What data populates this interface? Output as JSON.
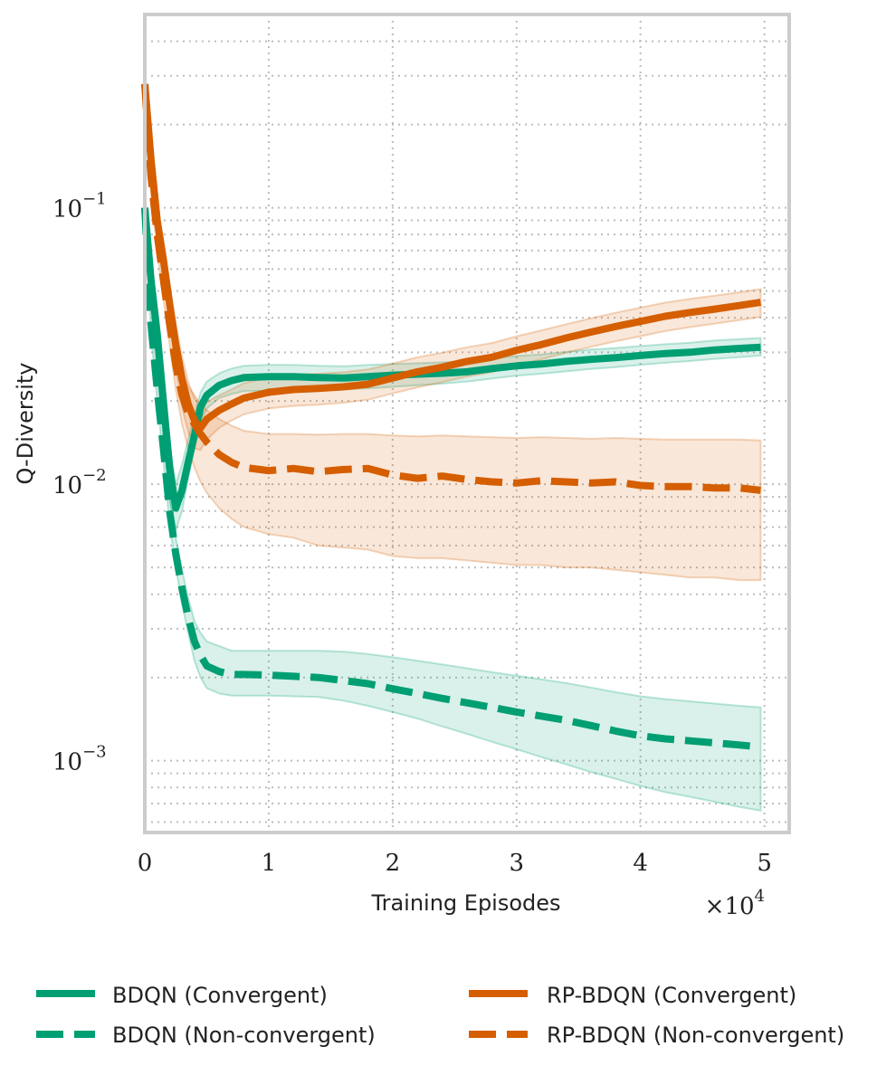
{
  "chart_data": {
    "type": "line",
    "xlabel": "Training Episodes",
    "ylabel": "Q-Diversity",
    "x_multiplier": {
      "base": "×10",
      "exp": "4"
    },
    "xlim": [
      0,
      52000
    ],
    "ylim": [
      0.00055,
      0.5
    ],
    "yscale": "log",
    "grid": true,
    "legend_position": "bottom",
    "xticks": [
      {
        "value": 0,
        "label": "0"
      },
      {
        "value": 10000,
        "label": "1"
      },
      {
        "value": 20000,
        "label": "2"
      },
      {
        "value": 30000,
        "label": "3"
      },
      {
        "value": 40000,
        "label": "4"
      },
      {
        "value": 50000,
        "label": "5"
      }
    ],
    "yticks": [
      {
        "value": 0.1,
        "base": "10",
        "exp": "−1"
      },
      {
        "value": 0.01,
        "base": "10",
        "exp": "−2"
      },
      {
        "value": 0.001,
        "base": "10",
        "exp": "−3"
      }
    ],
    "series": [
      {
        "name": "BDQN (Convergent)",
        "color": "#009e73",
        "dash": "solid",
        "x": [
          0,
          500,
          1000,
          1500,
          2000,
          2500,
          3000,
          3500,
          4000,
          4500,
          5000,
          6000,
          7000,
          8000,
          10000,
          12000,
          14000,
          16000,
          18000,
          20000,
          22000,
          24000,
          26000,
          28000,
          30000,
          32000,
          34000,
          36000,
          38000,
          40000,
          42000,
          44000,
          46000,
          48000,
          49700
        ],
        "y": [
          0.1,
          0.055,
          0.035,
          0.02,
          0.0115,
          0.0082,
          0.0095,
          0.012,
          0.015,
          0.019,
          0.021,
          0.0228,
          0.0237,
          0.0243,
          0.0245,
          0.0245,
          0.0243,
          0.0242,
          0.0245,
          0.0248,
          0.025,
          0.0252,
          0.0255,
          0.0262,
          0.0268,
          0.0272,
          0.0278,
          0.0283,
          0.0287,
          0.0292,
          0.0297,
          0.03,
          0.0306,
          0.031,
          0.0313
        ],
        "band_low": [
          0.095,
          0.05,
          0.03,
          0.016,
          0.0088,
          0.0068,
          0.008,
          0.0105,
          0.0135,
          0.017,
          0.0188,
          0.0205,
          0.0212,
          0.0217,
          0.0218,
          0.0219,
          0.0219,
          0.022,
          0.0222,
          0.0225,
          0.0228,
          0.0231,
          0.0235,
          0.0241,
          0.0247,
          0.0251,
          0.0256,
          0.0261,
          0.0265,
          0.027,
          0.0275,
          0.0279,
          0.0284,
          0.0288,
          0.0292
        ],
        "band_high": [
          0.105,
          0.06,
          0.04,
          0.024,
          0.014,
          0.01,
          0.0118,
          0.0145,
          0.0178,
          0.0215,
          0.0235,
          0.0252,
          0.0262,
          0.0268,
          0.027,
          0.027,
          0.0268,
          0.0267,
          0.027,
          0.0272,
          0.0274,
          0.0276,
          0.0279,
          0.0285,
          0.0291,
          0.0295,
          0.0301,
          0.0307,
          0.0311,
          0.0316,
          0.0321,
          0.0325,
          0.0331,
          0.0335,
          0.0338
        ]
      },
      {
        "name": "BDQN (Non-convergent)",
        "color": "#009e73",
        "dash": "dashed",
        "x": [
          0,
          500,
          1000,
          1500,
          2000,
          2500,
          3000,
          3500,
          4000,
          4500,
          5000,
          6000,
          7000,
          8000,
          10000,
          12000,
          14000,
          16000,
          18000,
          20000,
          22000,
          24000,
          26000,
          28000,
          30000,
          32000,
          34000,
          36000,
          38000,
          40000,
          42000,
          44000,
          46000,
          48000,
          49700
        ],
        "y": [
          0.1,
          0.038,
          0.022,
          0.0135,
          0.008,
          0.0056,
          0.0042,
          0.0033,
          0.0027,
          0.0024,
          0.0022,
          0.0021,
          0.00205,
          0.00205,
          0.00204,
          0.00202,
          0.002,
          0.00195,
          0.0019,
          0.00182,
          0.00175,
          0.00168,
          0.00162,
          0.00156,
          0.0015,
          0.00145,
          0.0014,
          0.00134,
          0.00128,
          0.00123,
          0.0012,
          0.00118,
          0.00116,
          0.00114,
          0.00112
        ],
        "band_low": [
          0.095,
          0.035,
          0.02,
          0.0122,
          0.0072,
          0.005,
          0.0037,
          0.0029,
          0.0023,
          0.002,
          0.00183,
          0.00175,
          0.00172,
          0.00172,
          0.00172,
          0.00171,
          0.0017,
          0.00165,
          0.00158,
          0.0015,
          0.00142,
          0.00133,
          0.00125,
          0.00117,
          0.0011,
          0.00103,
          0.00097,
          0.00091,
          0.00086,
          0.00081,
          0.00077,
          0.00074,
          0.00071,
          0.00068,
          0.00066
        ],
        "band_high": [
          0.105,
          0.042,
          0.025,
          0.015,
          0.009,
          0.0064,
          0.0049,
          0.0039,
          0.0032,
          0.0029,
          0.0027,
          0.0026,
          0.0025,
          0.0025,
          0.0025,
          0.0025,
          0.0025,
          0.00248,
          0.00243,
          0.00237,
          0.0023,
          0.00223,
          0.00216,
          0.00209,
          0.00203,
          0.00197,
          0.00191,
          0.00184,
          0.00177,
          0.00171,
          0.00167,
          0.00164,
          0.00161,
          0.00158,
          0.00156
        ]
      },
      {
        "name": "RP-BDQN (Convergent)",
        "color": "#d55e00",
        "dash": "solid",
        "x": [
          0,
          500,
          1000,
          1500,
          2000,
          2500,
          3000,
          3500,
          4000,
          4500,
          5000,
          6000,
          7000,
          8000,
          10000,
          12000,
          14000,
          16000,
          18000,
          20000,
          22000,
          24000,
          26000,
          28000,
          30000,
          32000,
          34000,
          36000,
          38000,
          40000,
          42000,
          44000,
          46000,
          48000,
          49700
        ],
        "y": [
          0.28,
          0.15,
          0.09,
          0.065,
          0.045,
          0.032,
          0.024,
          0.0195,
          0.017,
          0.016,
          0.0172,
          0.0185,
          0.0195,
          0.0205,
          0.0215,
          0.022,
          0.0222,
          0.0225,
          0.023,
          0.0242,
          0.0255,
          0.0265,
          0.0278,
          0.0288,
          0.0305,
          0.032,
          0.0338,
          0.0355,
          0.0372,
          0.0388,
          0.0405,
          0.0418,
          0.043,
          0.0443,
          0.0455
        ],
        "band_low": [
          0.26,
          0.135,
          0.08,
          0.056,
          0.038,
          0.026,
          0.019,
          0.0155,
          0.0135,
          0.0133,
          0.0145,
          0.016,
          0.017,
          0.0179,
          0.0188,
          0.0192,
          0.0194,
          0.0197,
          0.0202,
          0.0213,
          0.0224,
          0.0234,
          0.0245,
          0.0254,
          0.0269,
          0.0283,
          0.0299,
          0.0314,
          0.0329,
          0.0343,
          0.0358,
          0.037,
          0.0381,
          0.0392,
          0.0403
        ],
        "band_high": [
          0.3,
          0.165,
          0.1,
          0.074,
          0.052,
          0.038,
          0.029,
          0.0235,
          0.0205,
          0.019,
          0.0198,
          0.021,
          0.022,
          0.0232,
          0.0243,
          0.0249,
          0.0251,
          0.0254,
          0.026,
          0.0273,
          0.0288,
          0.0299,
          0.0313,
          0.0324,
          0.0343,
          0.036,
          0.0379,
          0.0398,
          0.0417,
          0.0435,
          0.0454,
          0.0468,
          0.0481,
          0.0495,
          0.0508
        ]
      },
      {
        "name": "RP-BDQN (Non-convergent)",
        "color": "#d55e00",
        "dash": "dashed",
        "x": [
          0,
          500,
          1000,
          1500,
          2000,
          2500,
          3000,
          3500,
          4000,
          4500,
          5000,
          6000,
          7000,
          8000,
          10000,
          12000,
          14000,
          16000,
          18000,
          20000,
          22000,
          24000,
          26000,
          28000,
          30000,
          32000,
          34000,
          36000,
          38000,
          40000,
          42000,
          44000,
          46000,
          48000,
          49700
        ],
        "y": [
          0.28,
          0.13,
          0.08,
          0.055,
          0.038,
          0.027,
          0.021,
          0.018,
          0.0165,
          0.0152,
          0.0142,
          0.0128,
          0.012,
          0.0115,
          0.0112,
          0.0114,
          0.0111,
          0.0113,
          0.0114,
          0.0108,
          0.0105,
          0.0107,
          0.0104,
          0.0102,
          0.0101,
          0.0103,
          0.0102,
          0.0101,
          0.0102,
          0.0099,
          0.0098,
          0.0098,
          0.0097,
          0.0097,
          0.0095
        ],
        "band_low": [
          0.26,
          0.115,
          0.07,
          0.047,
          0.032,
          0.022,
          0.0165,
          0.0135,
          0.0115,
          0.0102,
          0.0093,
          0.0082,
          0.0075,
          0.007,
          0.0066,
          0.0064,
          0.006,
          0.0059,
          0.0058,
          0.0055,
          0.0054,
          0.0054,
          0.0053,
          0.0052,
          0.0051,
          0.0051,
          0.005,
          0.005,
          0.0049,
          0.0048,
          0.0047,
          0.0046,
          0.0046,
          0.0045,
          0.0045
        ],
        "band_high": [
          0.3,
          0.145,
          0.09,
          0.063,
          0.044,
          0.032,
          0.026,
          0.0225,
          0.021,
          0.0195,
          0.0185,
          0.0172,
          0.0163,
          0.0156,
          0.0152,
          0.0152,
          0.0151,
          0.0152,
          0.0152,
          0.015,
          0.0149,
          0.015,
          0.0149,
          0.0148,
          0.0147,
          0.0148,
          0.0147,
          0.0146,
          0.0147,
          0.0146,
          0.0145,
          0.0145,
          0.0145,
          0.0145,
          0.0144
        ]
      }
    ]
  },
  "legend": {
    "items": [
      {
        "label": "BDQN (Convergent)"
      },
      {
        "label": "BDQN (Non-convergent)"
      },
      {
        "label": "RP-BDQN (Convergent)"
      },
      {
        "label": "RP-BDQN (Non-convergent)"
      }
    ]
  }
}
